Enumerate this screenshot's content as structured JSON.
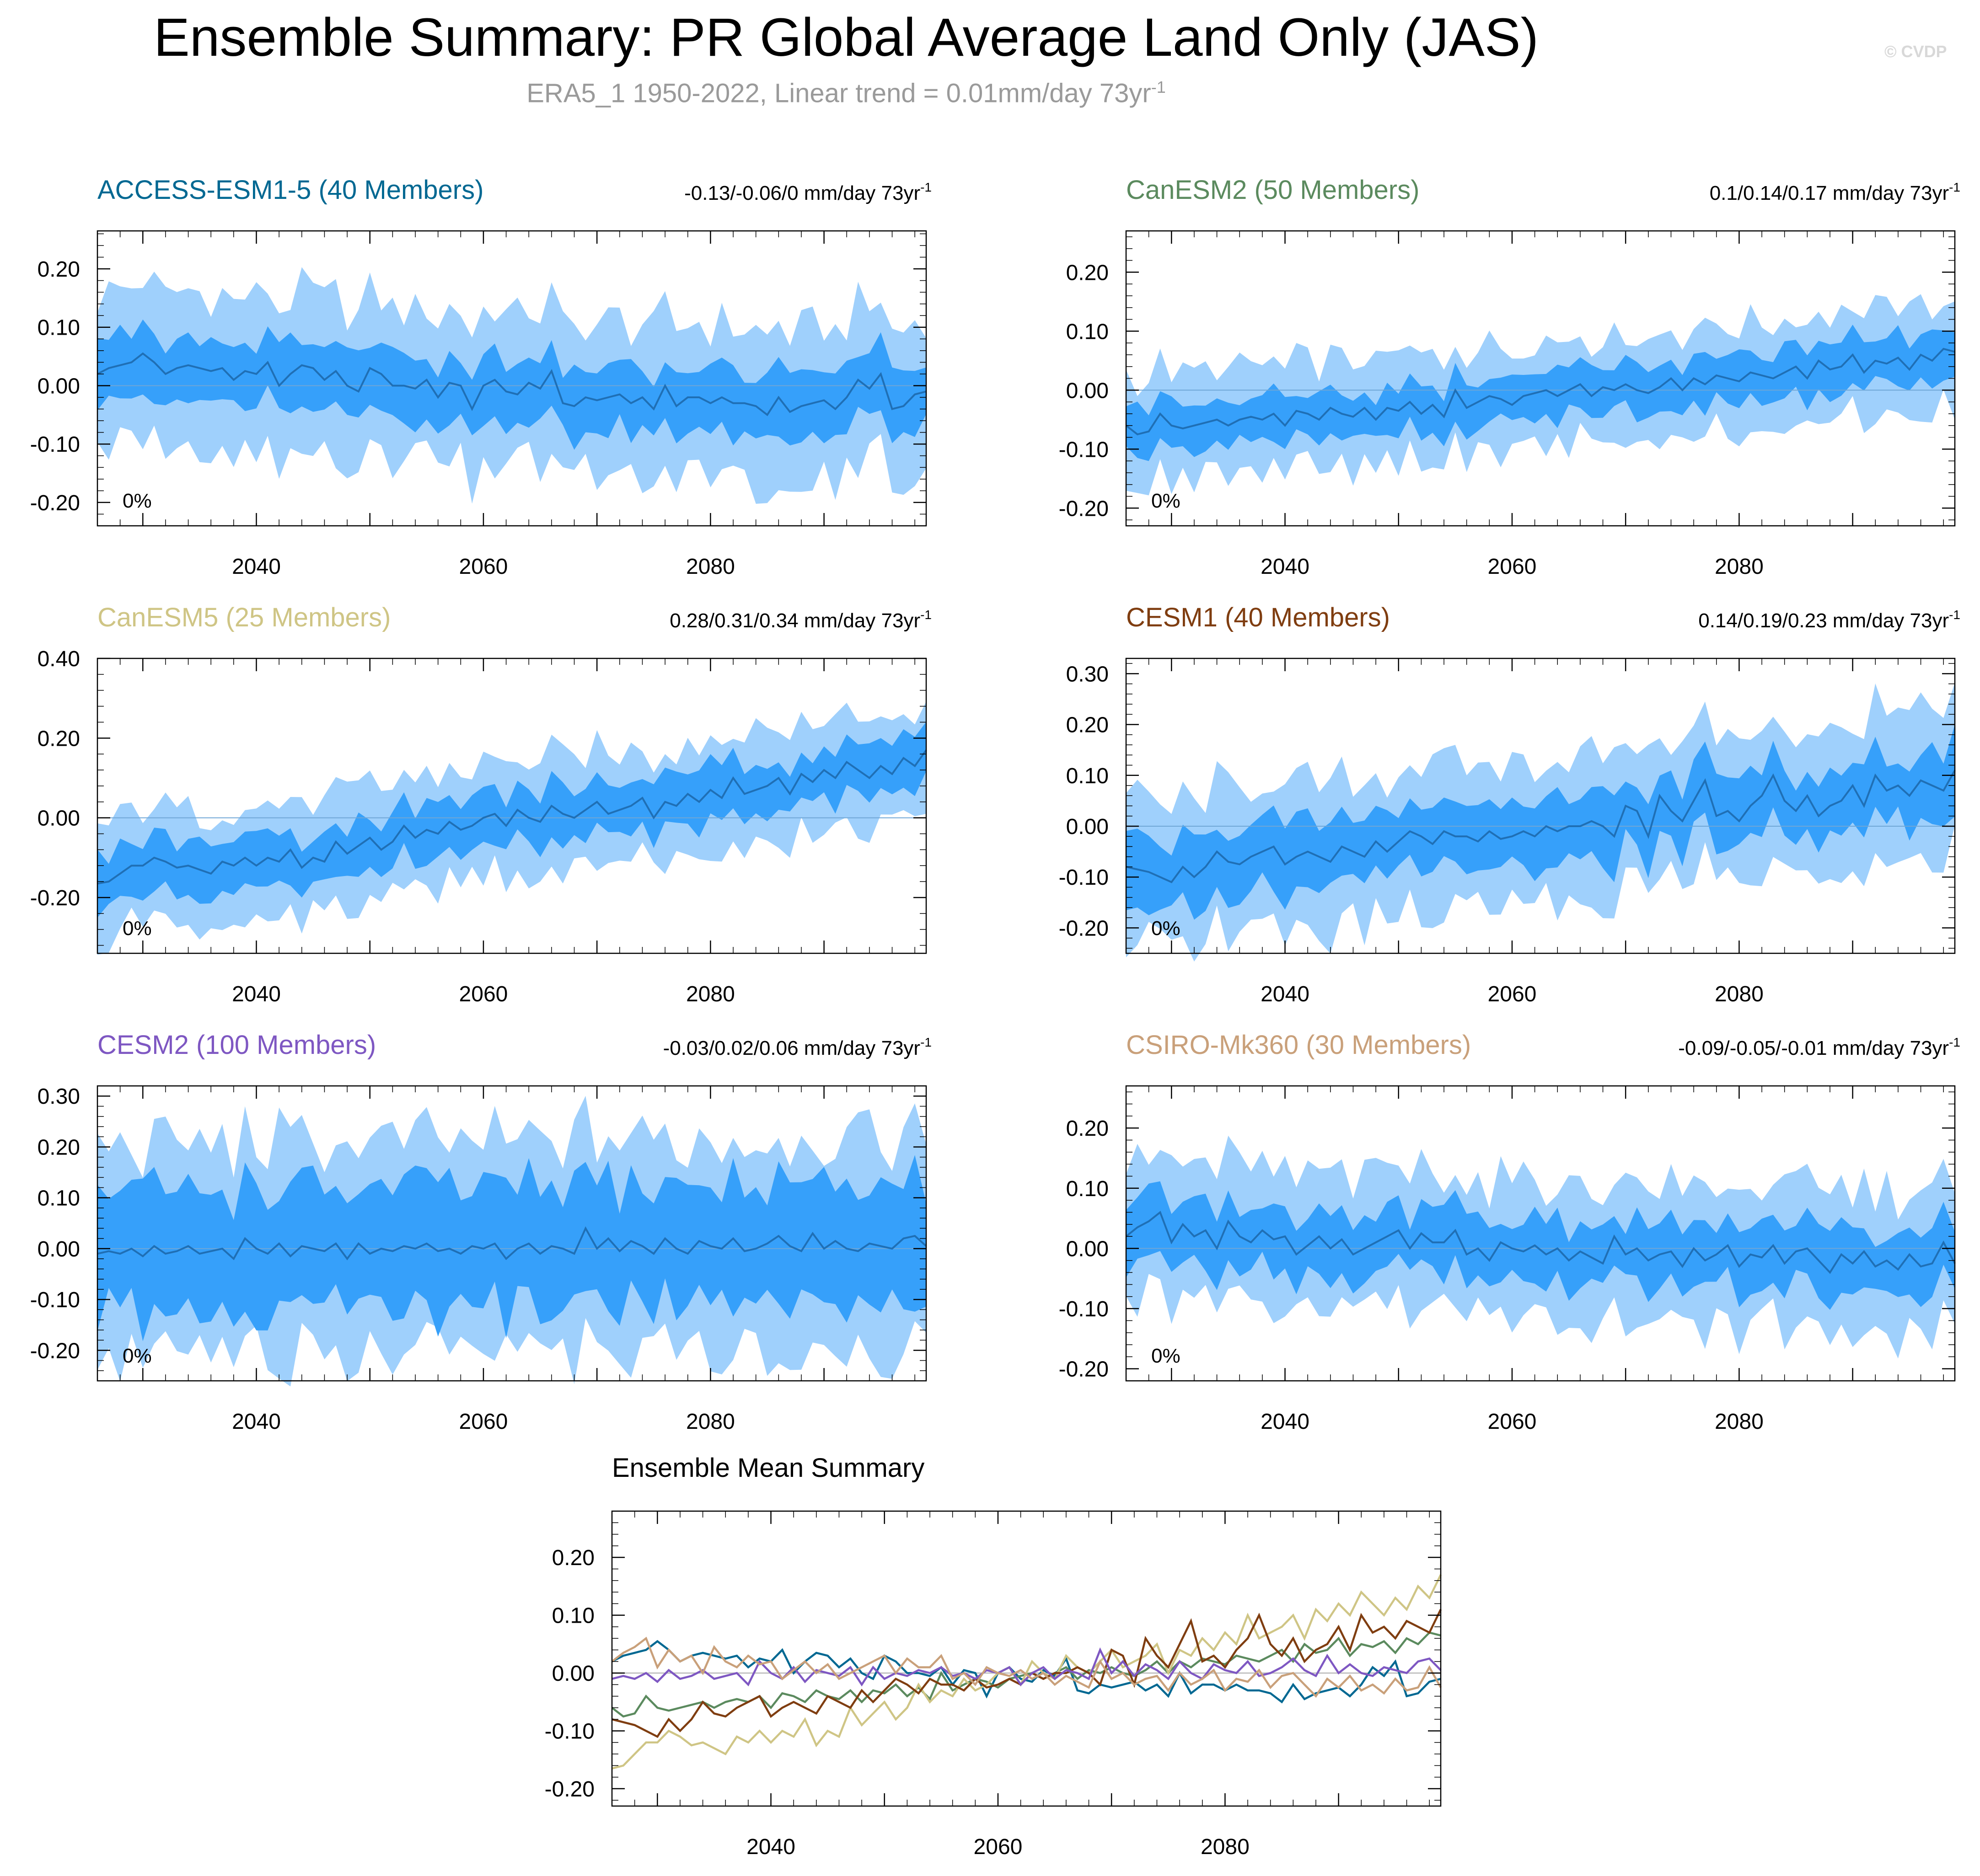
{
  "title": "Ensemble Summary: PR Global Average Land Only (JAS)",
  "subtitle_main": "ERA5_1 1950-2022, Linear trend = 0.01mm/day 73yr",
  "subtitle_sup": "-1",
  "watermark": "© CVDP",
  "colors": {
    "outer_band": "#9fd0fc",
    "inner_band": "#36a0fa",
    "mean_line": "#1f6fb5",
    "zero_line": "#c4c4c4"
  },
  "chart_data": [
    {
      "type": "area",
      "title": "ACCESS-ESM1-5 (40 Members)",
      "title_color": "#006892",
      "trend_text": "-0.13/-0.06/0 mm/day 73yr",
      "trend_sup": "-1",
      "percent_label": "0%",
      "x_range": [
        2026,
        2099
      ],
      "xticks": [
        2040,
        2060,
        2080
      ],
      "ylim": [
        -0.24,
        0.265
      ],
      "yticks": [
        -0.2,
        -0.1,
        0.0,
        0.1,
        0.2
      ],
      "ytick_labels": [
        "-0.20",
        "-0.10",
        "0.00",
        "0.10",
        "0.20"
      ],
      "band_trend": [
        0.03,
        -0.07
      ],
      "outer_halfwidth": 0.13,
      "inner_halfwidth": 0.055,
      "mean": [
        0.02,
        0.03,
        0.035,
        0.04,
        0.055,
        0.04,
        0.02,
        0.03,
        0.035,
        0.03,
        0.025,
        0.03,
        0.01,
        0.025,
        0.02,
        0.04,
        0.0,
        0.02,
        0.035,
        0.03,
        0.01,
        0.025,
        0.0,
        -0.01,
        0.03,
        0.02,
        0.0,
        0.0,
        -0.005,
        0.01,
        -0.02,
        0.005,
        0.0,
        -0.04,
        0.0,
        0.01,
        -0.01,
        -0.015,
        0.005,
        -0.005,
        0.025,
        -0.03,
        -0.035,
        -0.02,
        -0.025,
        -0.02,
        -0.015,
        -0.03,
        -0.02,
        -0.04,
        0.0,
        -0.035,
        -0.02,
        -0.02,
        -0.03,
        -0.02,
        -0.03,
        -0.03,
        -0.035,
        -0.05,
        -0.02,
        -0.045,
        -0.035,
        -0.03,
        -0.025,
        -0.04,
        -0.02,
        0.01,
        -0.005,
        0.02,
        -0.04,
        -0.035,
        -0.015,
        -0.01
      ]
    },
    {
      "type": "area",
      "title": "CanESM2 (50 Members)",
      "title_color": "#5b8a5e",
      "trend_text": "0.1/0.14/0.17 mm/day 73yr",
      "trend_sup": "-1",
      "percent_label": "0%",
      "x_range": [
        2026,
        2099
      ],
      "xticks": [
        2040,
        2060,
        2080
      ],
      "ylim": [
        -0.23,
        0.27
      ],
      "yticks": [
        -0.2,
        -0.1,
        0.0,
        0.1,
        0.2
      ],
      "ytick_labels": [
        "-0.20",
        "-0.10",
        "0.00",
        "0.10",
        "0.20"
      ],
      "band_trend": [
        -0.075,
        0.065
      ],
      "outer_halfwidth": 0.09,
      "inner_halfwidth": 0.04,
      "mean": [
        -0.06,
        -0.075,
        -0.07,
        -0.04,
        -0.06,
        -0.065,
        -0.06,
        -0.055,
        -0.05,
        -0.06,
        -0.05,
        -0.045,
        -0.05,
        -0.04,
        -0.06,
        -0.035,
        -0.04,
        -0.05,
        -0.03,
        -0.04,
        -0.045,
        -0.03,
        -0.05,
        -0.03,
        -0.035,
        -0.02,
        -0.04,
        -0.025,
        -0.045,
        0.0,
        -0.03,
        -0.02,
        -0.01,
        -0.015,
        -0.025,
        -0.01,
        -0.005,
        0.0,
        -0.01,
        0.0,
        0.01,
        -0.01,
        0.005,
        0.0,
        0.01,
        0.0,
        -0.005,
        0.005,
        0.02,
        0.0,
        0.02,
        0.01,
        0.025,
        0.02,
        0.015,
        0.03,
        0.025,
        0.02,
        0.03,
        0.04,
        0.02,
        0.05,
        0.035,
        0.04,
        0.06,
        0.03,
        0.05,
        0.045,
        0.055,
        0.035,
        0.06,
        0.05,
        0.07,
        0.065
      ]
    },
    {
      "type": "area",
      "title": "CanESM5 (25 Members)",
      "title_color": "#cfc585",
      "trend_text": "0.28/0.31/0.34 mm/day 73yr",
      "trend_sup": "-1",
      "percent_label": "0%",
      "x_range": [
        2026,
        2099
      ],
      "xticks": [
        2040,
        2060,
        2080
      ],
      "ylim": [
        -0.34,
        0.4
      ],
      "yticks": [
        -0.2,
        0.0,
        0.2,
        0.4
      ],
      "ytick_labels": [
        "-0.20",
        "0.00",
        "0.20",
        "0.40"
      ],
      "band_trend": [
        -0.15,
        0.16
      ],
      "outer_halfwidth": 0.14,
      "inner_halfwidth": 0.065,
      "mean": [
        -0.165,
        -0.16,
        -0.14,
        -0.12,
        -0.12,
        -0.1,
        -0.11,
        -0.125,
        -0.12,
        -0.13,
        -0.14,
        -0.11,
        -0.12,
        -0.1,
        -0.12,
        -0.1,
        -0.11,
        -0.08,
        -0.125,
        -0.1,
        -0.11,
        -0.06,
        -0.09,
        -0.07,
        -0.05,
        -0.08,
        -0.06,
        -0.02,
        -0.05,
        -0.03,
        -0.04,
        -0.01,
        -0.03,
        -0.02,
        0.0,
        0.01,
        -0.02,
        0.02,
        0.0,
        -0.01,
        0.03,
        0.01,
        0.0,
        0.02,
        0.04,
        0.01,
        0.02,
        0.03,
        0.05,
        0.0,
        0.04,
        0.03,
        0.06,
        0.04,
        0.07,
        0.05,
        0.1,
        0.06,
        0.07,
        0.08,
        0.1,
        0.06,
        0.11,
        0.09,
        0.12,
        0.1,
        0.14,
        0.12,
        0.1,
        0.13,
        0.11,
        0.15,
        0.13,
        0.17
      ]
    },
    {
      "type": "area",
      "title": "CESM1 (40 Members)",
      "title_color": "#7f3d10",
      "trend_text": "0.14/0.19/0.23 mm/day 73yr",
      "trend_sup": "-1",
      "percent_label": "0%",
      "x_range": [
        2026,
        2099
      ],
      "xticks": [
        2040,
        2060,
        2080
      ],
      "ylim": [
        -0.25,
        0.33
      ],
      "yticks": [
        -0.2,
        -0.1,
        0.0,
        0.1,
        0.2,
        0.3
      ],
      "ytick_labels": [
        "-0.20",
        "-0.10",
        "0.00",
        "0.10",
        "0.20",
        "0.30"
      ],
      "band_trend": [
        -0.09,
        0.09
      ],
      "outer_halfwidth": 0.14,
      "inner_halfwidth": 0.065,
      "mean": [
        -0.08,
        -0.085,
        -0.09,
        -0.1,
        -0.11,
        -0.08,
        -0.1,
        -0.08,
        -0.05,
        -0.07,
        -0.075,
        -0.06,
        -0.05,
        -0.04,
        -0.075,
        -0.06,
        -0.05,
        -0.06,
        -0.07,
        -0.04,
        -0.05,
        -0.06,
        -0.03,
        -0.05,
        -0.03,
        -0.01,
        -0.02,
        -0.035,
        -0.01,
        -0.02,
        -0.02,
        -0.03,
        -0.01,
        -0.025,
        -0.02,
        -0.01,
        -0.02,
        0.0,
        -0.01,
        0.0,
        0.0,
        0.01,
        0.0,
        -0.02,
        0.04,
        0.03,
        -0.02,
        0.06,
        0.03,
        0.01,
        0.05,
        0.09,
        0.02,
        0.03,
        0.01,
        0.04,
        0.06,
        0.1,
        0.05,
        0.03,
        0.06,
        0.02,
        0.04,
        0.05,
        0.08,
        0.04,
        0.1,
        0.07,
        0.08,
        0.06,
        0.09,
        0.08,
        0.07,
        0.11
      ]
    },
    {
      "type": "area",
      "title": "CESM2 (100 Members)",
      "title_color": "#7e57c2",
      "trend_text": "-0.03/0.02/0.06 mm/day 73yr",
      "trend_sup": "-1",
      "percent_label": "0%",
      "x_range": [
        2026,
        2099
      ],
      "xticks": [
        2040,
        2060,
        2080
      ],
      "ylim": [
        -0.26,
        0.32
      ],
      "yticks": [
        -0.2,
        -0.1,
        0.0,
        0.1,
        0.2,
        0.3
      ],
      "ytick_labels": [
        "-0.20",
        "-0.10",
        "0.00",
        "0.10",
        "0.20",
        "0.30"
      ],
      "band_trend": [
        -0.01,
        0.01
      ],
      "outer_halfwidth": 0.21,
      "inner_halfwidth": 0.12,
      "mean": [
        -0.01,
        -0.005,
        -0.01,
        0.0,
        -0.015,
        0.005,
        -0.01,
        -0.005,
        0.005,
        -0.01,
        -0.005,
        0.0,
        -0.02,
        0.02,
        0.0,
        -0.01,
        0.01,
        -0.015,
        0.005,
        0.0,
        -0.005,
        0.01,
        -0.02,
        0.01,
        -0.01,
        0.0,
        -0.005,
        0.005,
        0.0,
        0.01,
        -0.005,
        0.0,
        -0.01,
        0.005,
        0.0,
        0.01,
        -0.02,
        0.0,
        0.01,
        -0.01,
        0.005,
        0.0,
        -0.01,
        0.04,
        0.0,
        0.02,
        -0.005,
        0.015,
        0.005,
        -0.01,
        0.02,
        0.0,
        -0.01,
        0.015,
        0.005,
        0.0,
        0.02,
        -0.005,
        0.0,
        0.01,
        0.025,
        0.005,
        -0.005,
        0.03,
        0.0,
        0.015,
        0.0,
        -0.005,
        0.01,
        0.005,
        0.0,
        0.02,
        0.025,
        0.005
      ]
    },
    {
      "type": "area",
      "title": "CSIRO-Mk360 (30 Members)",
      "title_color": "#c9a07a",
      "trend_text": "-0.09/-0.05/-0.01 mm/day 73yr",
      "trend_sup": "-1",
      "percent_label": "0%",
      "x_range": [
        2026,
        2099
      ],
      "xticks": [
        2040,
        2060,
        2080
      ],
      "ylim": [
        -0.22,
        0.27
      ],
      "yticks": [
        -0.2,
        -0.1,
        0.0,
        0.1,
        0.2
      ],
      "ytick_labels": [
        "-0.20",
        "-0.10",
        "0.00",
        "0.10",
        "0.20"
      ],
      "band_trend": [
        0.02,
        -0.03
      ],
      "outer_halfwidth": 0.115,
      "inner_halfwidth": 0.05,
      "mean": [
        0.02,
        0.035,
        0.045,
        0.06,
        0.01,
        0.04,
        0.02,
        0.03,
        0.0,
        0.045,
        0.02,
        0.01,
        0.03,
        0.015,
        0.02,
        -0.01,
        0.005,
        0.02,
        0.0,
        0.015,
        -0.01,
        0.0,
        0.01,
        0.02,
        0.03,
        0.0,
        0.025,
        0.01,
        0.01,
        0.03,
        -0.01,
        0.0,
        -0.02,
        0.01,
        0.0,
        -0.005,
        0.005,
        -0.01,
        0.0,
        -0.02,
        -0.005,
        -0.015,
        -0.025,
        0.02,
        -0.01,
        0.0,
        -0.02,
        -0.01,
        -0.005,
        -0.03,
        0.0,
        -0.02,
        -0.01,
        0.005,
        -0.03,
        -0.01,
        -0.015,
        0.005,
        -0.025,
        -0.005,
        0.0,
        -0.02,
        -0.04,
        -0.01,
        -0.025,
        -0.005,
        -0.03,
        -0.02,
        -0.035,
        -0.01,
        -0.03,
        -0.025,
        0.01,
        -0.025
      ]
    },
    {
      "type": "line",
      "title": "Ensemble Mean Summary",
      "x_range": [
        2026,
        2099
      ],
      "xticks": [
        2040,
        2060,
        2080
      ],
      "ylim": [
        -0.23,
        0.28
      ],
      "yticks": [
        -0.2,
        -0.1,
        0.0,
        0.1,
        0.2
      ],
      "ytick_labels": [
        "-0.20",
        "-0.10",
        "0.00",
        "0.10",
        "0.20"
      ],
      "series_from_panels": true
    }
  ]
}
